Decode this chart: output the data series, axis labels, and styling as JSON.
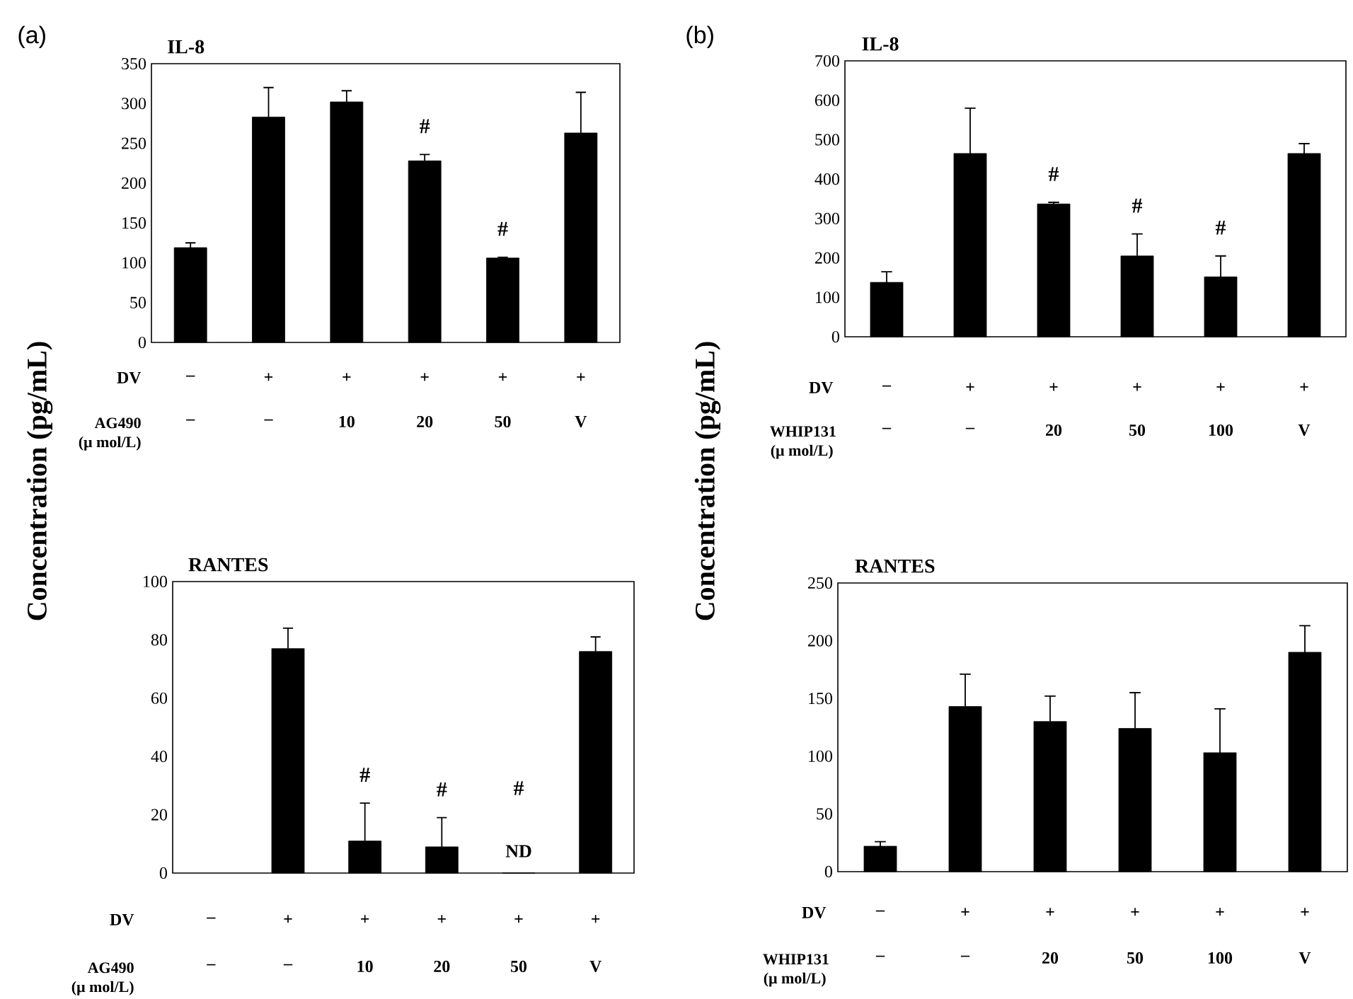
{
  "chart_data": [
    {
      "type": "bar",
      "title": "IL-8",
      "ylabel": "Concentration (pg/mL)",
      "xlabel": "AG490 (μ mol/L)",
      "categories": [
        "–",
        "–",
        "10",
        "20",
        "50",
        "V"
      ],
      "color": "#000000",
      "values": [
        119,
        283,
        302,
        228,
        106,
        263
      ],
      "errors": [
        [
          119,
          125
        ],
        [
          283,
          320
        ],
        [
          302,
          316
        ],
        [
          228,
          236
        ],
        [
          106,
          107
        ],
        [
          263,
          314
        ]
      ],
      "ylim": [
        0,
        350
      ],
      "yticks": [
        0,
        50,
        100,
        150,
        200,
        250,
        300,
        350
      ],
      "annotations": [
        "(a)",
        "DV",
        "–",
        "+",
        "+",
        "+",
        "+",
        "+",
        {
          "text": "#",
          "x": "20",
          "y": 236
        },
        {
          "text": "#",
          "x": "50",
          "y": 107
        }
      ]
    },
    {
      "type": "bar",
      "title": "IL-8",
      "ylabel": "Concentration (pg/mL)",
      "xlabel": "WHIP131 (μ mol/L)",
      "categories": [
        "–",
        "–",
        "20",
        "50",
        "100",
        "V"
      ],
      "color": "#000000",
      "values": [
        138,
        465,
        337,
        205,
        152,
        465
      ],
      "errors": [
        [
          138,
          165
        ],
        [
          465,
          580
        ],
        [
          337,
          341
        ],
        [
          205,
          261
        ],
        [
          152,
          205
        ],
        [
          465,
          490
        ]
      ],
      "ylim": [
        0,
        700
      ],
      "yticks": [
        0,
        100,
        200,
        300,
        400,
        500,
        600,
        700
      ],
      "annotations": [
        "(b)",
        "DV",
        "–",
        "+",
        "+",
        "+",
        "+",
        "+",
        {
          "text": "#",
          "x": "20",
          "y": 341
        },
        {
          "text": "#",
          "x": "50",
          "y": 261
        },
        {
          "text": "#",
          "x": "100",
          "y": 205
        }
      ]
    },
    {
      "type": "bar",
      "title": "RANTES",
      "xlabel": "AG490 (μ mol/L)",
      "categories": [
        "–",
        "–",
        "10",
        "20",
        "50",
        "V"
      ],
      "color": "#000000",
      "values": [
        null,
        77,
        11,
        9,
        0,
        76
      ],
      "value_labels": [
        null,
        null,
        null,
        null,
        "ND",
        null
      ],
      "errors": [
        null,
        [
          77,
          84
        ],
        [
          11,
          24
        ],
        [
          9,
          19
        ],
        null,
        [
          76,
          81
        ]
      ],
      "ylim": [
        0,
        100
      ],
      "yticks": [
        0,
        20,
        40,
        60,
        80,
        100
      ],
      "annotations": [
        "#",
        "DV",
        "–",
        "+",
        "+",
        "+",
        "+",
        "+",
        {
          "text": "#",
          "x": "10",
          "y": 24
        },
        {
          "text": "#",
          "x": "20",
          "y": 19
        }
      ]
    },
    {
      "type": "bar",
      "title": "RANTES",
      "xlabel": "WHIP131 (μ mol/L)",
      "categories": [
        "–",
        "–",
        "20",
        "50",
        "100",
        "V"
      ],
      "color": "#000000",
      "values": [
        22,
        143,
        130,
        124,
        103,
        190
      ],
      "errors": [
        [
          22,
          26
        ],
        [
          143,
          171
        ],
        [
          130,
          152
        ],
        [
          124,
          155
        ],
        [
          103,
          141
        ],
        [
          190,
          213
        ]
      ],
      "ylim": [
        0,
        250
      ],
      "yticks": [
        0,
        50,
        100,
        150,
        200,
        250
      ],
      "annotations": [
        "DV",
        "–",
        "+",
        "+",
        "+",
        "+",
        "+"
      ]
    }
  ]
}
